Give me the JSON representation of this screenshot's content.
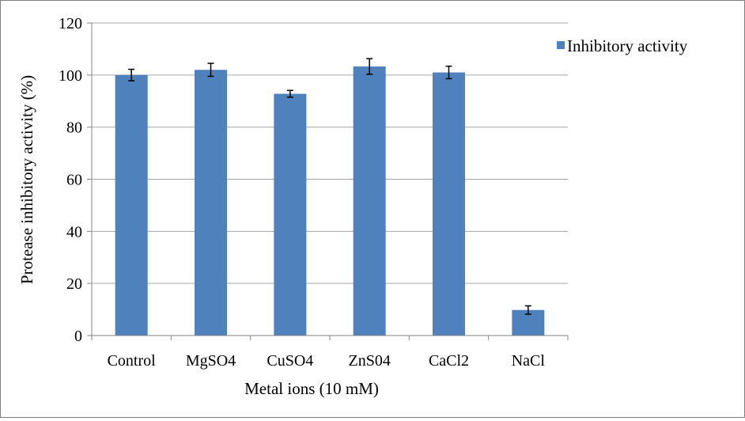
{
  "chart_data": {
    "type": "bar",
    "categories": [
      "Control",
      "MgSO4",
      "CuSO4",
      "ZnS04",
      "CaCl2",
      "NaCl"
    ],
    "series": [
      {
        "name": "Inhibitory activity",
        "values": [
          100,
          102,
          92.8,
          103.3,
          101,
          9.8
        ],
        "errors": [
          2.2,
          2.5,
          1.3,
          3.0,
          2.4,
          1.6
        ]
      }
    ],
    "xlabel": "Metal ions (10 mM)",
    "ylabel": "Protease inhibitory activity (%)",
    "ylim": [
      0,
      120
    ],
    "yticks": [
      "0",
      "20",
      "40",
      "60",
      "80",
      "100",
      "120"
    ],
    "grid": true,
    "legend_position": "right",
    "colors": {
      "bar": "#4f81bd",
      "grid": "#a6a6a6",
      "axis": "#868686",
      "error_bar": "#000000"
    }
  }
}
